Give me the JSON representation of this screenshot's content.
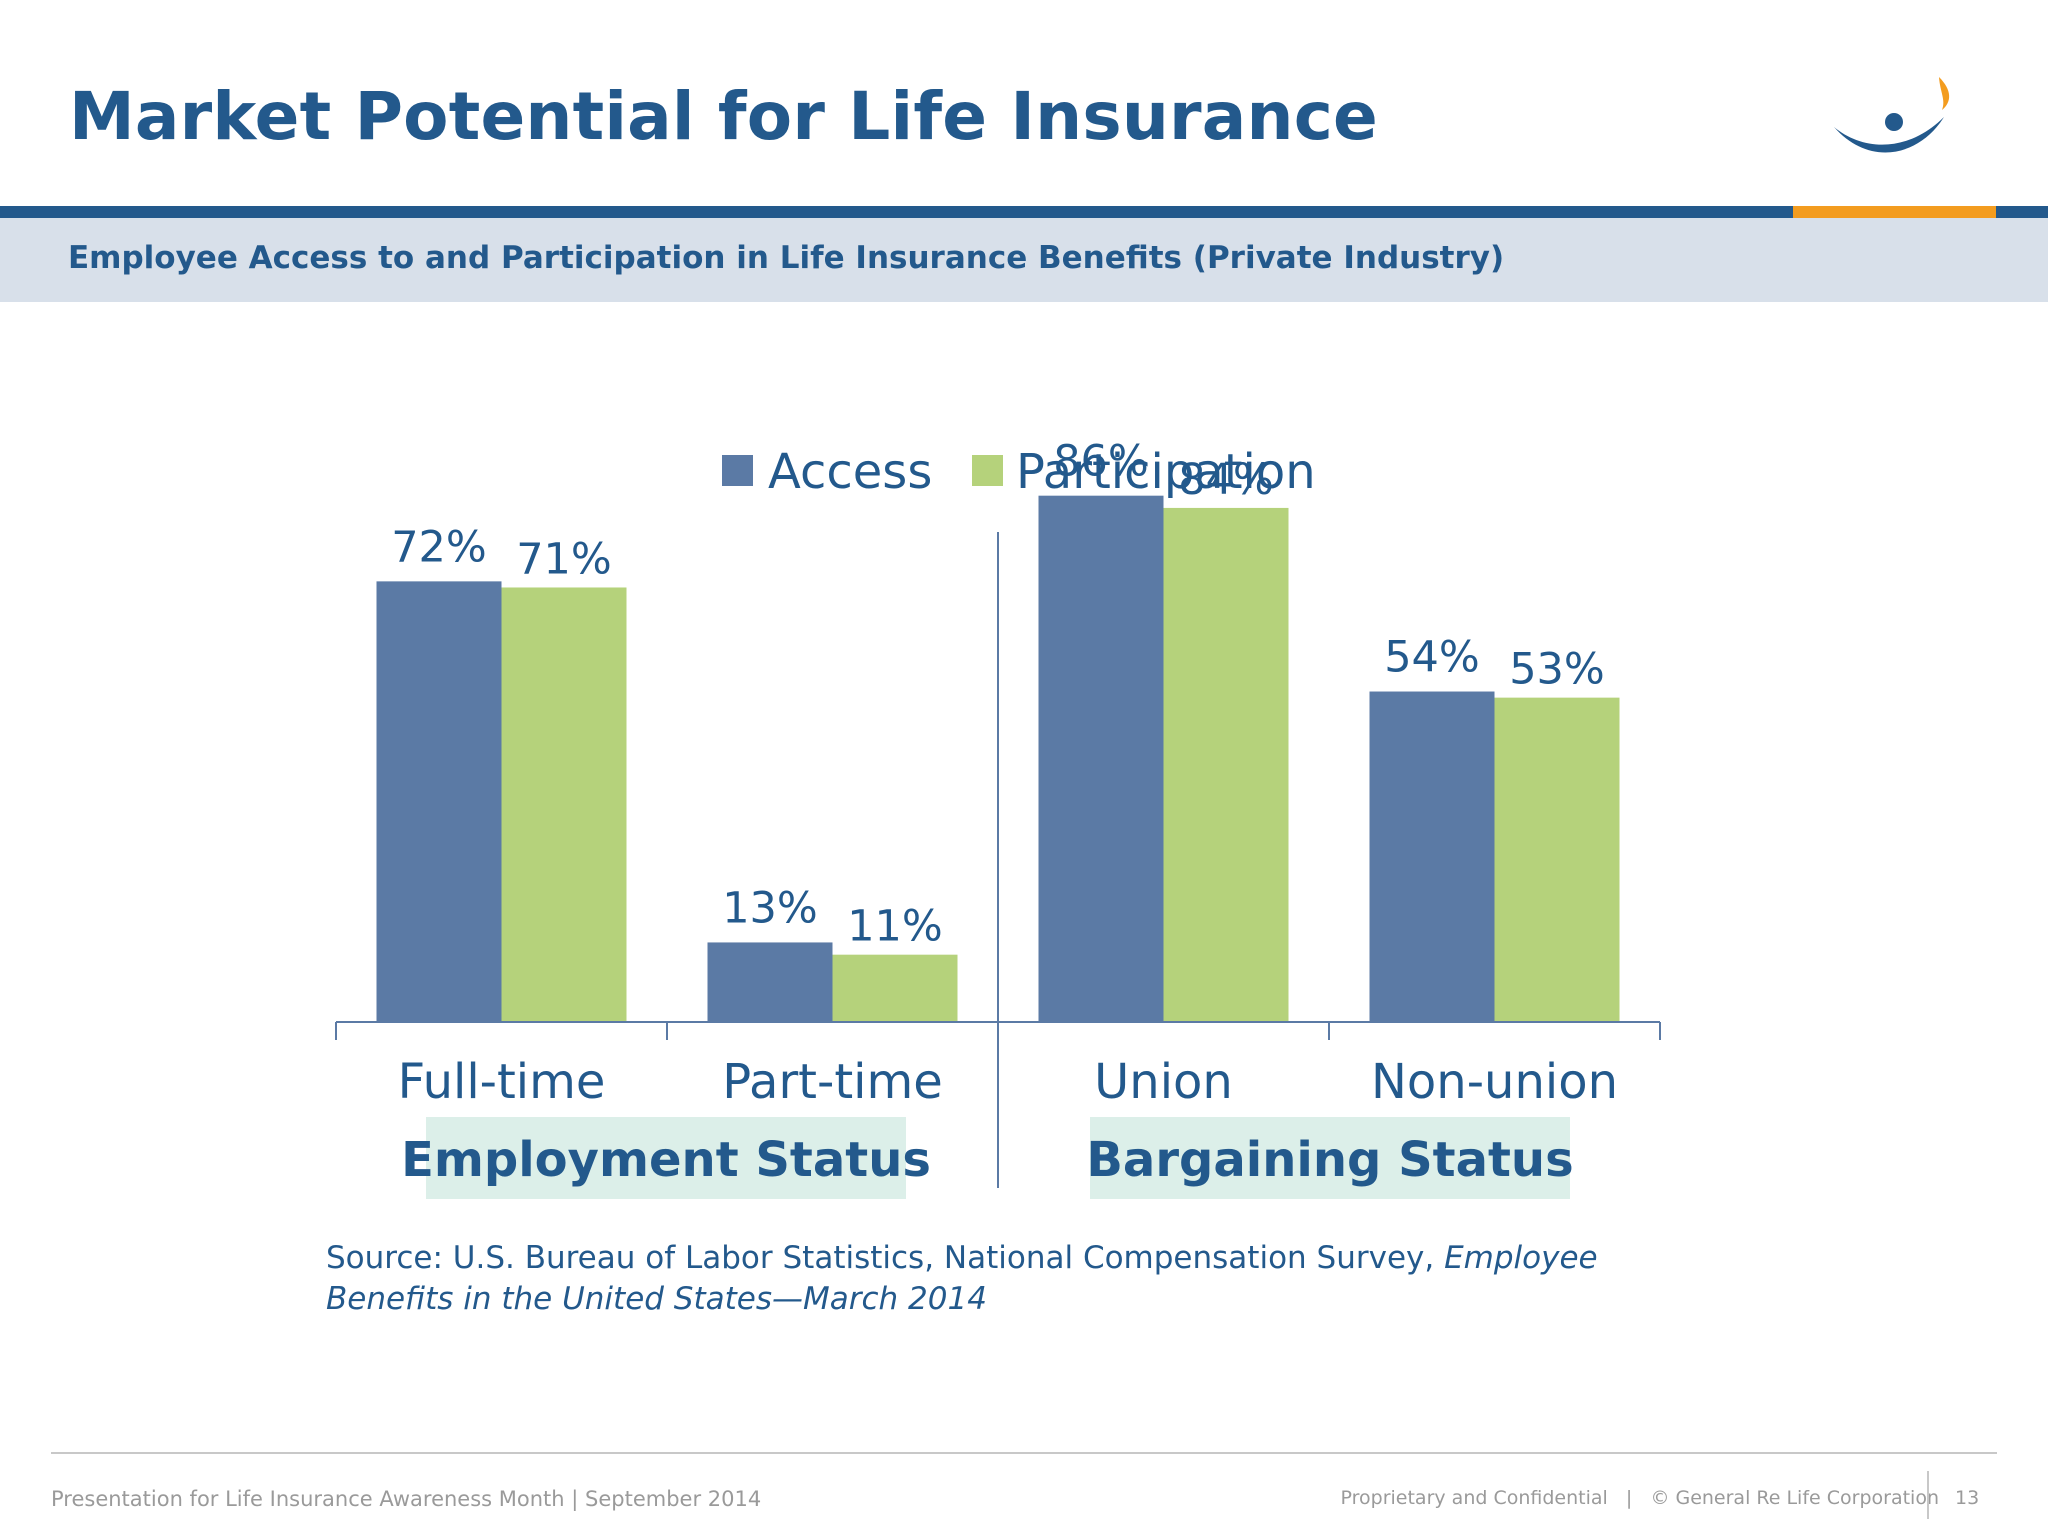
{
  "slide": {
    "title": "Market Potential for Life Insurance",
    "subtitle": "Employee Access to and Participation in Life Insurance Benefits (Private Industry)",
    "source_prefix": "Source: U.S. Bureau of Labor Statistics, National Compensation Survey, ",
    "source_italic": "Employee Benefits in the United States—March 2014",
    "footer_left": "Presentation for Life Insurance Awareness Month | September 2014",
    "footer_right": "Proprietary and Confidential   |   © General Re Life Corporation",
    "page_number": "13"
  },
  "colors": {
    "brand_blue": "#23598c",
    "access": "#5b7aa5",
    "participation": "#b5d27b",
    "accent_orange": "#f39c1f",
    "subtitle_band": "#d8e0ea",
    "group_box": "#dcefe9"
  },
  "chart_data": {
    "type": "bar",
    "categories": [
      "Full-time",
      "Part-time",
      "Union",
      "Non-union"
    ],
    "groups": [
      {
        "label": "Employment Status",
        "categories": [
          "Full-time",
          "Part-time"
        ]
      },
      {
        "label": "Bargaining Status",
        "categories": [
          "Union",
          "Non-union"
        ]
      }
    ],
    "series": [
      {
        "name": "Access",
        "values": [
          72,
          13,
          86,
          54
        ],
        "labels": [
          "72%",
          "13%",
          "86%",
          "54%"
        ]
      },
      {
        "name": "Participation",
        "values": [
          71,
          11,
          84,
          53
        ],
        "labels": [
          "71%",
          "11%",
          "84%",
          "53%"
        ]
      }
    ],
    "unit": "%",
    "ylim": [
      0,
      100
    ],
    "grid": false,
    "legend_position": "top-center"
  }
}
